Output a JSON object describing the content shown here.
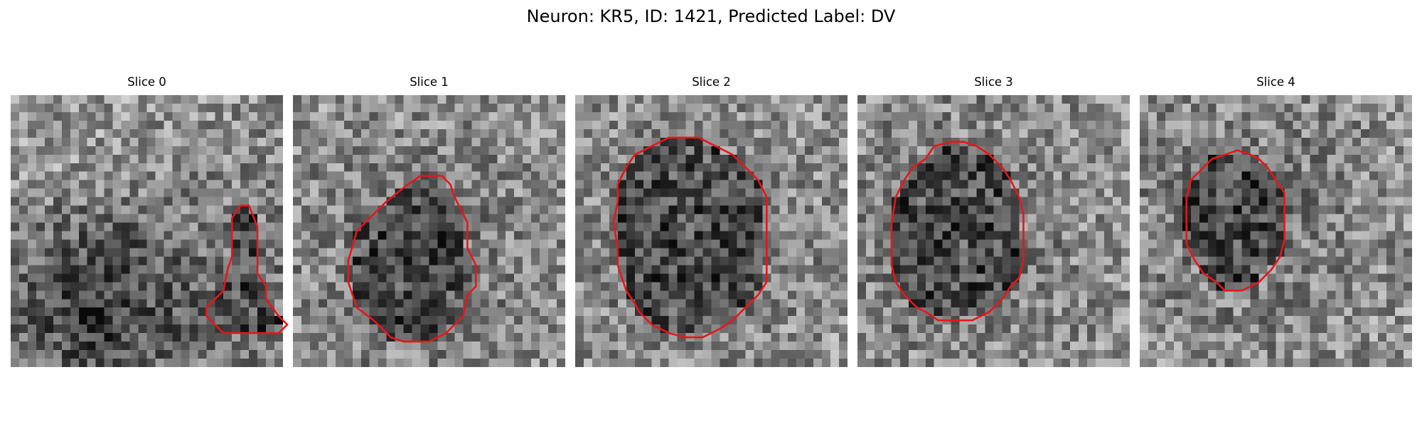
{
  "figure": {
    "title": "Neuron: KR5, ID: 1421, Predicted Label: DV",
    "contour_color": "#e8161a"
  },
  "panels": [
    {
      "title": "Slice 0",
      "image_description": "Grayscale noisy microscopy patch, darker region in lower-left, small outlined blob near center",
      "contour": [
        [
          5.6,
          2.6
        ],
        [
          5.4,
          2.6
        ],
        [
          5.2,
          2.9
        ],
        [
          5.2,
          3.8
        ],
        [
          5.1,
          4.1
        ],
        [
          5.0,
          4.6
        ],
        [
          4.6,
          5.0
        ],
        [
          4.6,
          5.2
        ],
        [
          5.0,
          5.6
        ],
        [
          6.3,
          5.6
        ],
        [
          6.5,
          5.4
        ],
        [
          6.3,
          5.2
        ],
        [
          6.0,
          4.8
        ],
        [
          6.0,
          4.5
        ],
        [
          5.8,
          4.2
        ],
        [
          5.8,
          3.1
        ]
      ]
    },
    {
      "title": "Slice 1",
      "image_description": "Grayscale noisy patch with a dark round cell body outlined",
      "contour": [
        [
          3.5,
          1.9
        ],
        [
          3.0,
          1.9
        ],
        [
          2.7,
          2.1
        ],
        [
          2.2,
          2.5
        ],
        [
          1.8,
          2.9
        ],
        [
          1.5,
          3.2
        ],
        [
          1.3,
          3.9
        ],
        [
          1.3,
          4.4
        ],
        [
          1.5,
          5.0
        ],
        [
          1.9,
          5.3
        ],
        [
          2.3,
          5.7
        ],
        [
          2.6,
          5.8
        ],
        [
          3.2,
          5.8
        ],
        [
          3.6,
          5.6
        ],
        [
          4.0,
          5.2
        ],
        [
          4.1,
          4.7
        ],
        [
          4.3,
          4.5
        ],
        [
          4.3,
          4.0
        ],
        [
          4.1,
          3.6
        ],
        [
          4.1,
          3.0
        ],
        [
          3.8,
          2.4
        ],
        [
          3.7,
          2.1
        ]
      ]
    },
    {
      "title": "Slice 2",
      "image_description": "Grayscale noisy patch with a large dark round cell body outlined",
      "contour": [
        [
          2.2,
          1.0
        ],
        [
          1.8,
          1.2
        ],
        [
          1.4,
          1.4
        ],
        [
          1.2,
          1.7
        ],
        [
          1.0,
          2.1
        ],
        [
          1.0,
          2.5
        ],
        [
          0.9,
          3.0
        ],
        [
          1.0,
          3.6
        ],
        [
          1.0,
          4.0
        ],
        [
          1.2,
          4.6
        ],
        [
          1.4,
          4.9
        ],
        [
          1.5,
          5.1
        ],
        [
          1.8,
          5.4
        ],
        [
          2.2,
          5.6
        ],
        [
          2.6,
          5.7
        ],
        [
          3.0,
          5.7
        ],
        [
          3.4,
          5.5
        ],
        [
          3.7,
          5.3
        ],
        [
          4.0,
          5.0
        ],
        [
          4.3,
          4.7
        ],
        [
          4.5,
          4.4
        ],
        [
          4.5,
          3.8
        ],
        [
          4.5,
          3.1
        ],
        [
          4.5,
          2.4
        ],
        [
          4.3,
          2.0
        ],
        [
          4.0,
          1.7
        ],
        [
          3.7,
          1.4
        ],
        [
          3.3,
          1.2
        ],
        [
          2.9,
          1.0
        ]
      ]
    },
    {
      "title": "Slice 3",
      "image_description": "Grayscale noisy patch with a dark round cell body outlined",
      "contour": [
        [
          2.2,
          1.1
        ],
        [
          1.8,
          1.2
        ],
        [
          1.6,
          1.5
        ],
        [
          1.3,
          1.7
        ],
        [
          1.1,
          2.0
        ],
        [
          0.9,
          2.4
        ],
        [
          0.8,
          3.0
        ],
        [
          0.8,
          3.6
        ],
        [
          0.8,
          4.0
        ],
        [
          0.9,
          4.4
        ],
        [
          1.1,
          4.7
        ],
        [
          1.4,
          5.0
        ],
        [
          1.6,
          5.1
        ],
        [
          1.9,
          5.3
        ],
        [
          2.3,
          5.3
        ],
        [
          2.7,
          5.3
        ],
        [
          3.1,
          5.1
        ],
        [
          3.4,
          4.8
        ],
        [
          3.6,
          4.5
        ],
        [
          3.8,
          4.3
        ],
        [
          3.9,
          3.9
        ],
        [
          3.9,
          3.3
        ],
        [
          3.9,
          2.8
        ],
        [
          3.8,
          2.4
        ],
        [
          3.6,
          2.0
        ],
        [
          3.4,
          1.7
        ],
        [
          3.1,
          1.4
        ],
        [
          2.8,
          1.2
        ],
        [
          2.5,
          1.1
        ]
      ]
    },
    {
      "title": "Slice 4",
      "image_description": "Grayscale noisy patch with a dark round cell body outlined",
      "contour": [
        [
          2.3,
          1.3
        ],
        [
          2.0,
          1.4
        ],
        [
          1.7,
          1.5
        ],
        [
          1.4,
          1.8
        ],
        [
          1.2,
          2.0
        ],
        [
          1.1,
          2.4
        ],
        [
          1.1,
          3.0
        ],
        [
          1.1,
          3.5
        ],
        [
          1.3,
          3.9
        ],
        [
          1.5,
          4.2
        ],
        [
          1.8,
          4.4
        ],
        [
          2.0,
          4.6
        ],
        [
          2.4,
          4.6
        ],
        [
          2.8,
          4.4
        ],
        [
          3.1,
          4.1
        ],
        [
          3.3,
          3.8
        ],
        [
          3.4,
          3.4
        ],
        [
          3.4,
          2.8
        ],
        [
          3.4,
          2.3
        ],
        [
          3.2,
          2.0
        ],
        [
          3.0,
          1.7
        ],
        [
          2.8,
          1.5
        ],
        [
          2.6,
          1.4
        ]
      ]
    }
  ]
}
